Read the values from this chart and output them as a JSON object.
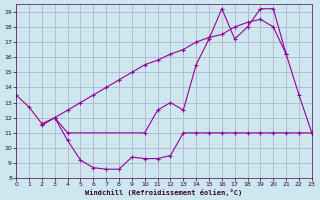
{
  "background_color": "#cce8ee",
  "grid_color": "#b0a8cc",
  "line_color": "#990099",
  "xlim": [
    0,
    23
  ],
  "ylim": [
    8,
    19.5
  ],
  "xlabel": "Windchill (Refroidissement éolien,°C)",
  "xticks": [
    0,
    1,
    2,
    3,
    4,
    5,
    6,
    7,
    8,
    9,
    10,
    11,
    12,
    13,
    14,
    15,
    16,
    17,
    18,
    19,
    20,
    21,
    22,
    23
  ],
  "yticks": [
    8,
    9,
    10,
    11,
    12,
    13,
    14,
    15,
    16,
    17,
    18,
    19
  ],
  "line1_x": [
    0,
    1,
    2,
    3,
    4,
    5,
    6,
    7,
    8,
    9,
    10,
    11,
    12,
    13,
    14,
    15,
    16,
    17,
    18,
    19,
    20,
    21,
    22,
    23
  ],
  "line1_y": [
    13.5,
    12.7,
    11.6,
    12.0,
    10.5,
    9.2,
    8.7,
    8.6,
    8.6,
    9.4,
    9.3,
    9.3,
    9.5,
    11.0,
    11.0,
    11.0,
    11.0,
    11.0,
    11.0,
    11.0,
    11.0,
    11.0,
    11.0,
    11.0
  ],
  "line2_x": [
    2,
    3,
    4,
    5,
    6,
    7,
    8,
    9,
    10,
    11,
    12,
    13,
    14,
    15,
    16,
    17,
    18,
    19,
    20,
    21
  ],
  "line2_y": [
    11.5,
    12.0,
    12.5,
    13.0,
    13.5,
    14.0,
    14.5,
    15.0,
    15.5,
    15.8,
    16.2,
    16.5,
    17.0,
    17.3,
    17.5,
    18.0,
    18.3,
    18.5,
    18.0,
    16.2
  ],
  "line3_x": [
    3,
    4,
    10,
    11,
    12,
    13,
    14,
    15,
    16,
    17,
    18,
    19,
    20,
    21,
    22,
    23
  ],
  "line3_y": [
    12.0,
    11.0,
    11.0,
    12.5,
    13.0,
    12.5,
    15.5,
    17.2,
    19.2,
    17.2,
    18.0,
    19.2,
    19.2,
    16.2,
    13.5,
    11.0
  ]
}
